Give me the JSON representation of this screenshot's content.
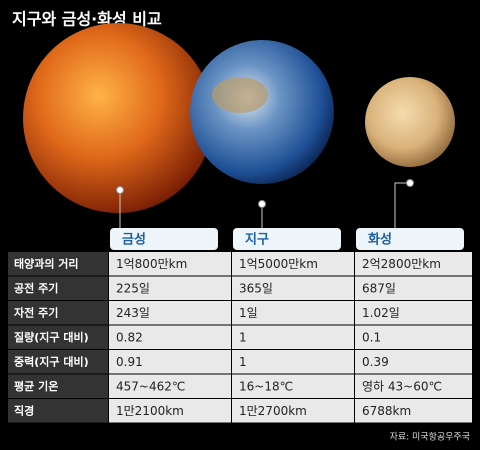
{
  "title": "지구와 금성·화성 비교",
  "planets": [
    "금성",
    "지구",
    "화성"
  ],
  "rows": [
    {
      "label": "태양과의 거리",
      "values": [
        "1억800만km",
        "1억5000만km",
        "2억2800만km"
      ]
    },
    {
      "label": "공전 주기",
      "values": [
        "225일",
        "365일",
        "687일"
      ]
    },
    {
      "label": "자전 주기",
      "values": [
        "243일",
        "1일",
        "1.02일"
      ]
    },
    {
      "label": "질량(지구 대비)",
      "values": [
        "0.82",
        "1",
        "0.1"
      ]
    },
    {
      "label": "중력(지구 대비)",
      "values": [
        "0.91",
        "1",
        "0.39"
      ]
    },
    {
      "label": "평균 기온",
      "values": [
        "457~462℃",
        "16~18℃",
        "영하 43~60℃"
      ]
    },
    {
      "label": "직경",
      "values": [
        "1만2100km",
        "1만2700km",
        "6788km"
      ]
    }
  ],
  "source": "자료: 미국항공우주국"
}
